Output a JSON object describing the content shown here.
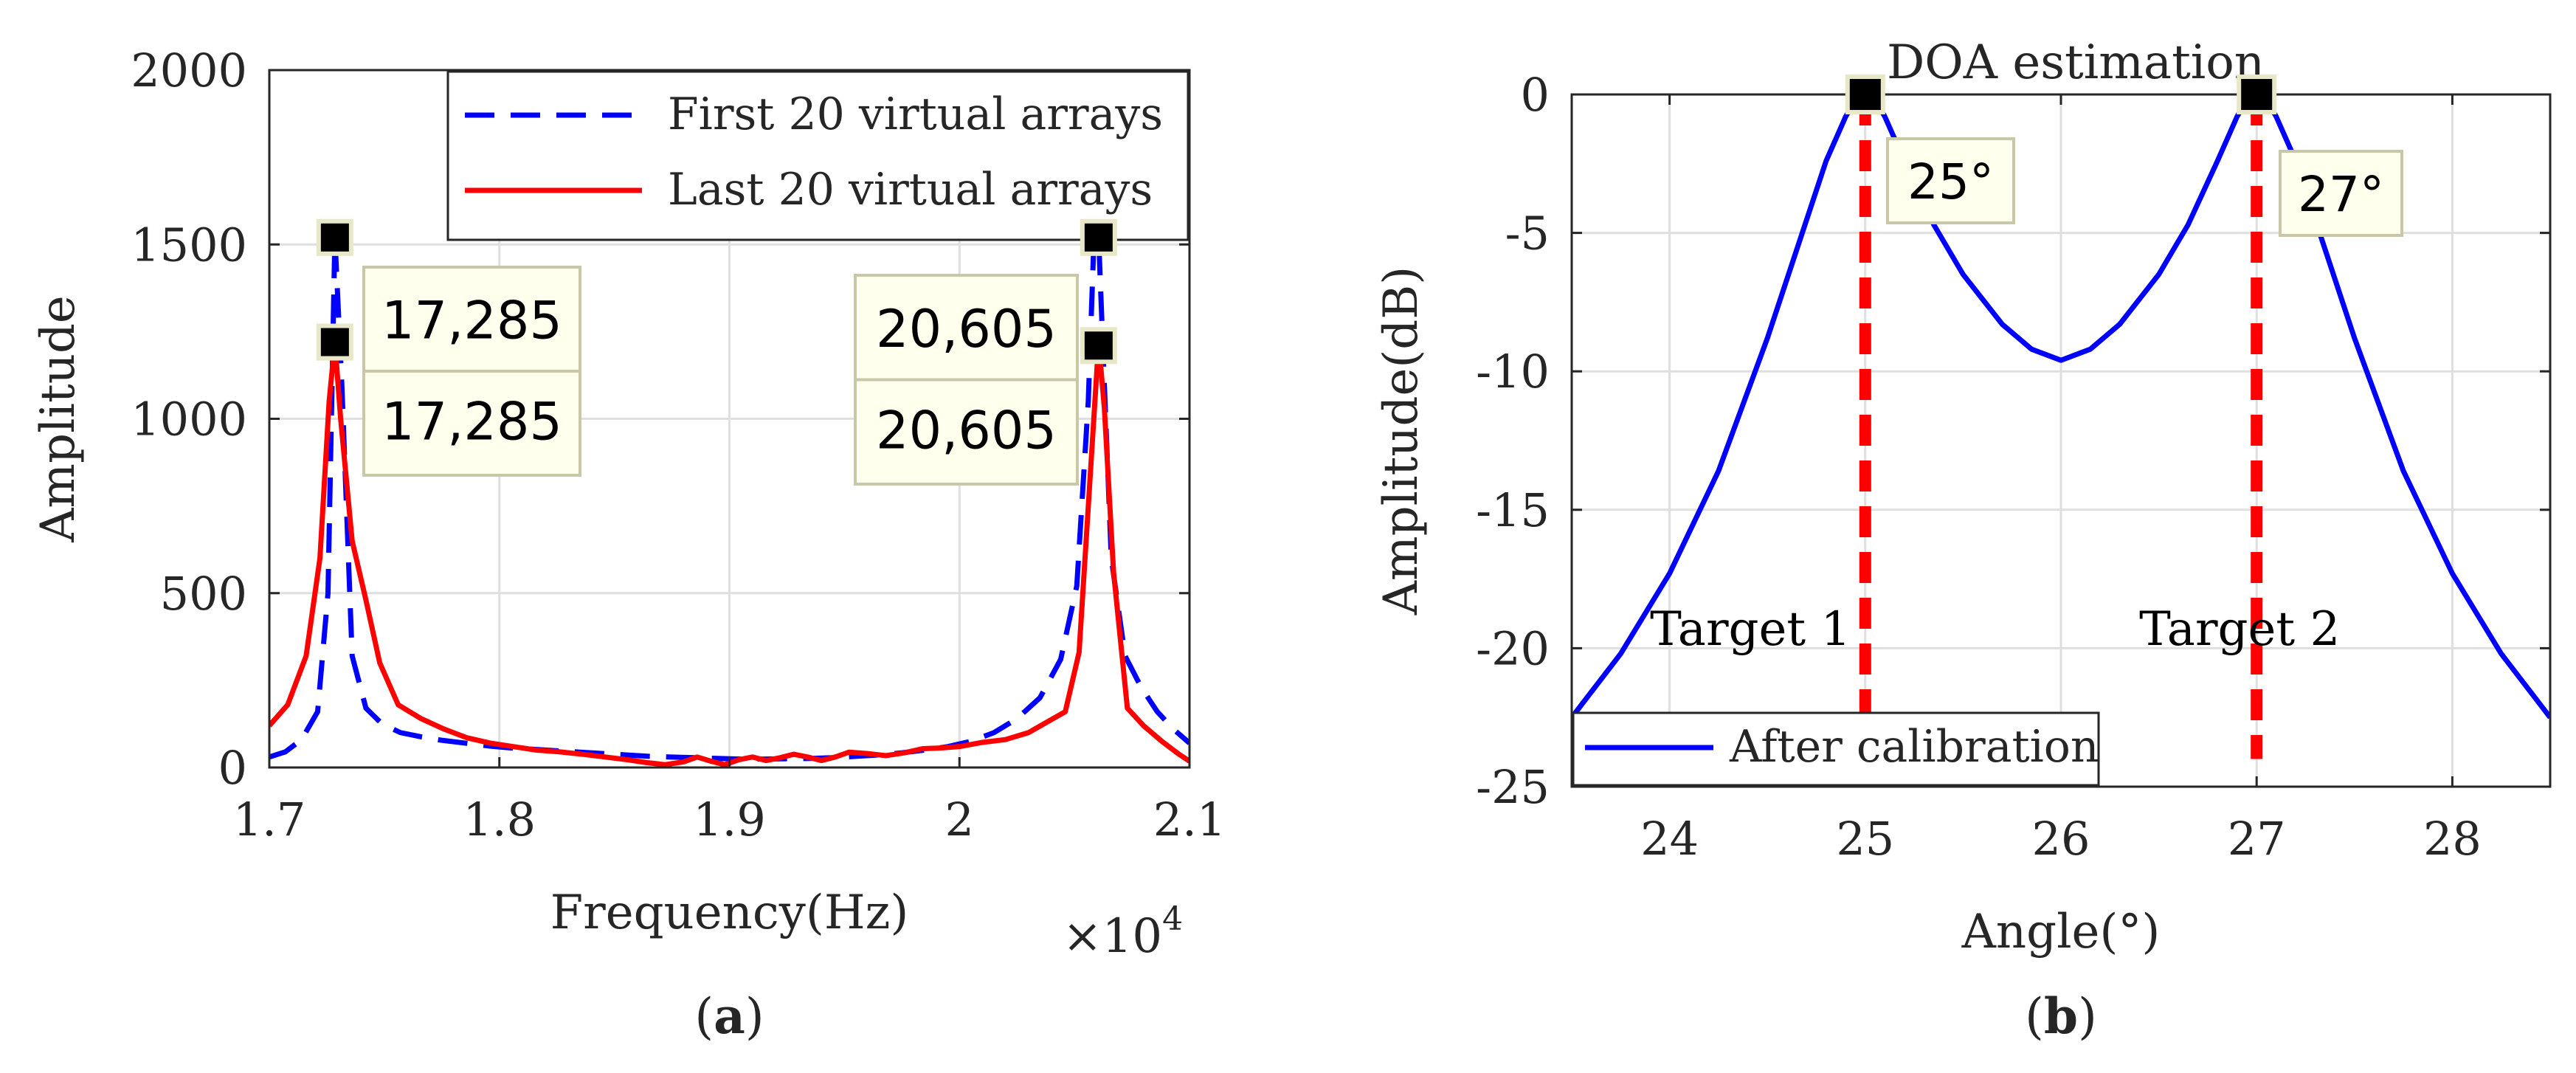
{
  "chart_data": [
    {
      "panel_label": "a",
      "type": "line",
      "title": "",
      "xlabel": "Frequency(Hz)",
      "ylabel": "Amplitude",
      "x_exponent_label": "×10",
      "x_exponent_power": "4",
      "xlim": [
        1.7,
        2.1
      ],
      "ylim": [
        0,
        2000
      ],
      "xticks": [
        1.7,
        1.8,
        1.9,
        2.0,
        2.1
      ],
      "xtick_labels": [
        "1.7",
        "1.8",
        "1.9",
        "2",
        "2.1"
      ],
      "yticks": [
        0,
        500,
        1000,
        1500,
        2000
      ],
      "ytick_labels": [
        "0",
        "500",
        "1000",
        "1500",
        "2000"
      ],
      "grid": true,
      "legend_position": "top-right",
      "series": [
        {
          "name": "First 20 virtual arrays",
          "color": "#0000ff",
          "style": "dashed",
          "x": [
            1.7,
            1.707,
            1.714,
            1.721,
            1.7255,
            1.7285,
            1.7315,
            1.736,
            1.742,
            1.749,
            1.757,
            1.766,
            1.775,
            1.785,
            1.795,
            1.805,
            1.815,
            1.825,
            1.835,
            1.845,
            1.855,
            1.865,
            1.875,
            1.885,
            1.895,
            1.905,
            1.915,
            1.925,
            1.935,
            1.945,
            1.955,
            1.965,
            1.975,
            1.985,
            1.995,
            2.005,
            2.015,
            2.025,
            2.035,
            2.044,
            2.051,
            2.056,
            2.0585,
            2.0605,
            2.0625,
            2.066,
            2.072,
            2.079,
            2.086,
            2.093,
            2.1
          ],
          "values": [
            30,
            45,
            80,
            160,
            500,
            1520,
            1100,
            320,
            170,
            125,
            100,
            88,
            78,
            70,
            62,
            56,
            52,
            48,
            44,
            40,
            36,
            32,
            30,
            28,
            26,
            24,
            24,
            25,
            26,
            28,
            32,
            36,
            42,
            50,
            60,
            75,
            100,
            140,
            200,
            310,
            520,
            1050,
            1520,
            1520,
            1180,
            600,
            320,
            230,
            160,
            110,
            70
          ]
        },
        {
          "name": "Last 20 virtual arrays",
          "color": "#ff0000",
          "style": "solid",
          "x": [
            1.7,
            1.708,
            1.716,
            1.722,
            1.726,
            1.7285,
            1.731,
            1.736,
            1.742,
            1.748,
            1.756,
            1.766,
            1.776,
            1.786,
            1.796,
            1.806,
            1.816,
            1.826,
            1.836,
            1.846,
            1.856,
            1.864,
            1.872,
            1.88,
            1.886,
            1.892,
            1.898,
            1.904,
            1.91,
            1.916,
            1.922,
            1.928,
            1.934,
            1.94,
            1.946,
            1.952,
            1.96,
            1.968,
            1.976,
            1.984,
            1.992,
            2.0,
            2.01,
            2.02,
            2.03,
            2.038,
            2.046,
            2.052,
            2.0565,
            2.0605,
            2.063,
            2.067,
            2.073,
            2.08,
            2.088,
            2.095,
            2.1
          ],
          "values": [
            120,
            180,
            320,
            600,
            1050,
            1220,
            1000,
            650,
            480,
            300,
            180,
            140,
            110,
            85,
            70,
            60,
            50,
            45,
            38,
            30,
            22,
            14,
            8,
            16,
            30,
            18,
            8,
            22,
            30,
            20,
            28,
            38,
            30,
            20,
            30,
            44,
            40,
            34,
            42,
            54,
            56,
            60,
            72,
            80,
            100,
            130,
            160,
            330,
            800,
            1220,
            1030,
            560,
            170,
            120,
            75,
            40,
            18
          ]
        }
      ],
      "datatips": [
        {
          "series": "First 20 virtual arrays",
          "x": 1.7285,
          "y": 1520,
          "label": "17,285"
        },
        {
          "series": "Last 20 virtual arrays",
          "x": 1.7285,
          "y": 1220,
          "label": "17,285"
        },
        {
          "series": "First 20 virtual arrays",
          "x": 2.0605,
          "y": 1520,
          "label": "20,605"
        },
        {
          "series": "Last 20 virtual arrays",
          "x": 2.0605,
          "y": 1220,
          "label": "20,605"
        }
      ],
      "caption": "a"
    },
    {
      "panel_label": "b",
      "type": "line",
      "title": "DOA estimation",
      "xlabel": "Angle(°)",
      "ylabel": "Amplitude(dB)",
      "xlim": [
        23.5,
        28.5
      ],
      "ylim": [
        -25,
        0
      ],
      "xticks": [
        24,
        25,
        26,
        27,
        28
      ],
      "xtick_labels": [
        "24",
        "25",
        "26",
        "27",
        "28"
      ],
      "yticks": [
        0,
        -5,
        -10,
        -15,
        -20,
        -25
      ],
      "ytick_labels": [
        "0",
        "-5",
        "-10",
        "-15",
        "-20",
        "-25"
      ],
      "grid": true,
      "legend_position": "bottom-left",
      "series": [
        {
          "name": "After calibration",
          "color": "#0000ff",
          "style": "solid",
          "x": [
            23.5,
            23.75,
            24.0,
            24.25,
            24.5,
            24.65,
            24.8,
            24.9,
            24.95,
            25.0,
            25.05,
            25.1,
            25.2,
            25.35,
            25.5,
            25.7,
            25.85,
            26.0,
            26.15,
            26.3,
            26.5,
            26.65,
            26.8,
            26.9,
            26.95,
            27.0,
            27.05,
            27.1,
            27.2,
            27.35,
            27.5,
            27.75,
            28.0,
            28.25,
            28.5
          ],
          "values": [
            -22.5,
            -20.2,
            -17.3,
            -13.6,
            -8.8,
            -5.6,
            -2.4,
            -0.8,
            -0.2,
            0.0,
            -0.2,
            -0.8,
            -2.4,
            -4.7,
            -6.5,
            -8.3,
            -9.2,
            -9.6,
            -9.2,
            -8.3,
            -6.5,
            -4.7,
            -2.4,
            -0.8,
            -0.2,
            0.0,
            -0.2,
            -0.8,
            -2.4,
            -5.6,
            -8.8,
            -13.6,
            -17.3,
            -20.2,
            -22.5
          ]
        },
        {
          "name": "DOA marker 25°",
          "color": "#ff0000",
          "style": "dashed",
          "x": [
            25.0,
            25.0
          ],
          "values": [
            0,
            -22.5
          ]
        },
        {
          "name": "DOA marker 27°",
          "color": "#ff0000",
          "style": "dashed",
          "x": [
            27.0,
            27.0
          ],
          "values": [
            0,
            -24
          ]
        }
      ],
      "datatips": [
        {
          "x": 25.0,
          "y": 0,
          "label": "25°"
        },
        {
          "x": 27.0,
          "y": 0,
          "label": "27°"
        }
      ],
      "annotations": [
        {
          "text": "Target 1",
          "x": 23.9,
          "y": -19.3
        },
        {
          "text": "Target 2",
          "x": 26.4,
          "y": -19.3
        }
      ],
      "caption": "b"
    }
  ]
}
